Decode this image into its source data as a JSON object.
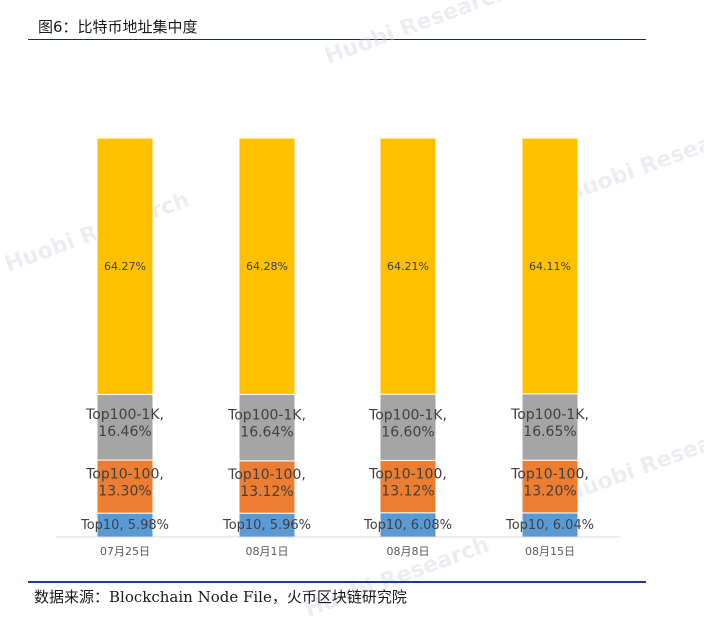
{
  "figure_title": "图6：比特币地址集中度",
  "source_note": "数据来源：Blockchain Node File，火币区块链研究院",
  "watermark": "Huobi Research",
  "colors": {
    "Top10": "#5b9bd5",
    "Top10-100": "#ed7d31",
    "Top100-1K": "#a5a5a5",
    "top": "#ffc000"
  },
  "chart_data": {
    "type": "bar",
    "stacked": true,
    "percent_stacked": true,
    "categories": [
      "07月25日",
      "08月1日",
      "08月8日",
      "08月15日"
    ],
    "series": [
      {
        "name": "Top10",
        "values": [
          5.98,
          5.96,
          6.08,
          6.04
        ],
        "labels": [
          "Top10, 5.98%",
          "Top10, 5.96%",
          "Top10, 6.08%",
          "Top10, 6.04%"
        ]
      },
      {
        "name": "Top10-100",
        "values": [
          13.3,
          13.12,
          13.12,
          13.2
        ],
        "labels": [
          [
            "Top10-100,",
            "13.30%"
          ],
          [
            "Top10-100,",
            "13.12%"
          ],
          [
            "Top10-100,",
            "13.12%"
          ],
          [
            "Top10-100,",
            "13.20%"
          ]
        ]
      },
      {
        "name": "Top100-1K",
        "values": [
          16.46,
          16.64,
          16.6,
          16.65
        ],
        "labels": [
          [
            "Top100-1K,",
            "16.46%"
          ],
          [
            "Top100-1K,",
            "16.64%"
          ],
          [
            "Top100-1K,",
            "16.60%"
          ],
          [
            "Top100-1K,",
            "16.65%"
          ]
        ]
      },
      {
        "name": "",
        "values": [
          64.27,
          64.28,
          64.21,
          64.11
        ],
        "labels": [
          "64.27%",
          "64.28%",
          "64.21%",
          "64.11%"
        ]
      }
    ],
    "legend": "none",
    "grid": false
  }
}
